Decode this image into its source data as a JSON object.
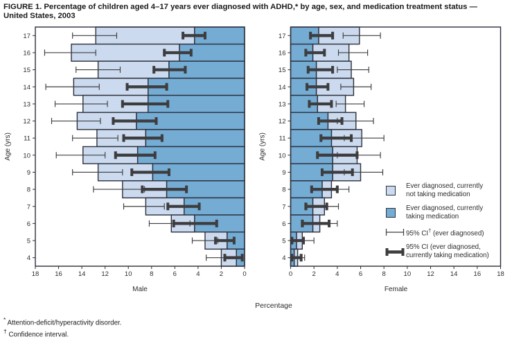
{
  "title_line1": "FIGURE 1. Percentage of children aged 4–17 years ever diagnosed with ADHD,* by age, sex, and medication treatment status —",
  "title_line2": "United States, 2003",
  "footnotes": [
    {
      "symbol": "*",
      "text": " Attention-deficit/hyperactivity disorder."
    },
    {
      "symbol": "†",
      "text": " Confidence interval."
    }
  ],
  "colors": {
    "bar_light": "#cbdaee",
    "bar_dark": "#74acd4",
    "bar_border": "#2b2f3b",
    "ci_color": "#3d3d3f",
    "text": "#2d2d2d"
  },
  "chart_data": {
    "type": "bar",
    "subtype": "population-pyramid-stacked-horizontal",
    "xlabel": "Percentage",
    "ylabel": "Age (yrs)",
    "xlim": [
      0,
      18
    ],
    "x_ticks": [
      0,
      2,
      4,
      6,
      8,
      10,
      12,
      14,
      16,
      18
    ],
    "ages": [
      17,
      16,
      15,
      14,
      13,
      12,
      11,
      10,
      9,
      8,
      7,
      6,
      5,
      4
    ],
    "series_meaning": {
      "ever": "Ever diagnosed with ADHD (total bar length, %)",
      "med": "Ever diagnosed, currently taking medication (dark segment, %)",
      "not_taking": "ever minus med (light segment, %)",
      "ever_ci": "95% CI for ever diagnosed (thin error bar)",
      "med_ci": "95% CI for currently taking medication (thick error bar)"
    },
    "legend": [
      {
        "swatch": "light",
        "lines": [
          "Ever diagnosed, currently",
          "not taking medication"
        ]
      },
      {
        "swatch": "dark",
        "lines": [
          "Ever diagnosed, currently",
          "taking medication"
        ]
      },
      {
        "swatch": "thin-ci",
        "pre": "95% CI",
        "sup": "†",
        "post": " (ever diagnosed)"
      },
      {
        "swatch": "thick-ci",
        "lines": [
          "95% CI (ever diagnosed,",
          "currently taking medication)"
        ]
      }
    ],
    "male": {
      "label": "Male",
      "rows": [
        {
          "age": 17,
          "ever": 12.8,
          "ever_ci": [
            11.0,
            14.8
          ],
          "med": 4.3,
          "med_ci": [
            3.4,
            5.3
          ]
        },
        {
          "age": 16,
          "ever": 14.9,
          "ever_ci": [
            12.8,
            17.2
          ],
          "med": 5.6,
          "med_ci": [
            4.6,
            6.9
          ]
        },
        {
          "age": 15,
          "ever": 12.6,
          "ever_ci": [
            10.7,
            14.5
          ],
          "med": 6.5,
          "med_ci": [
            5.1,
            7.8
          ]
        },
        {
          "age": 14,
          "ever": 14.7,
          "ever_ci": [
            12.5,
            17.1
          ],
          "med": 8.3,
          "med_ci": [
            6.7,
            10.1
          ]
        },
        {
          "age": 13,
          "ever": 13.9,
          "ever_ci": [
            11.8,
            16.3
          ],
          "med": 8.3,
          "med_ci": [
            6.6,
            10.5
          ]
        },
        {
          "age": 12,
          "ever": 14.4,
          "ever_ci": [
            12.4,
            16.6
          ],
          "med": 9.3,
          "med_ci": [
            7.6,
            11.3
          ]
        },
        {
          "age": 11,
          "ever": 12.7,
          "ever_ci": [
            10.9,
            14.8
          ],
          "med": 8.5,
          "med_ci": [
            7.1,
            10.4
          ]
        },
        {
          "age": 10,
          "ever": 13.9,
          "ever_ci": [
            12.0,
            16.2
          ],
          "med": 9.2,
          "med_ci": [
            7.7,
            11.1
          ]
        },
        {
          "age": 9,
          "ever": 12.6,
          "ever_ci": [
            10.5,
            14.8
          ],
          "med": 7.9,
          "med_ci": [
            6.5,
            9.7
          ]
        },
        {
          "age": 8,
          "ever": 10.5,
          "ever_ci": [
            8.6,
            13.0
          ],
          "med": 6.7,
          "med_ci": [
            5.0,
            8.8
          ]
        },
        {
          "age": 7,
          "ever": 8.5,
          "ever_ci": [
            6.9,
            10.4
          ],
          "med": 5.2,
          "med_ci": [
            3.9,
            6.6
          ]
        },
        {
          "age": 6,
          "ever": 6.3,
          "ever_ci": [
            4.7,
            8.2
          ],
          "med": 4.3,
          "med_ci": [
            2.4,
            6.1
          ]
        },
        {
          "age": 5,
          "ever": 3.4,
          "ever_ci": [
            2.3,
            4.5
          ],
          "med": 1.5,
          "med_ci": [
            0.9,
            2.5
          ]
        },
        {
          "age": 4,
          "ever": 2.0,
          "ever_ci": [
            0.7,
            3.3
          ],
          "med": 0.7,
          "med_ci": [
            0.2,
            1.7
          ]
        }
      ]
    },
    "female": {
      "label": "Female",
      "rows": [
        {
          "age": 17,
          "ever": 5.9,
          "ever_ci": [
            4.5,
            7.7
          ],
          "med": 2.4,
          "med_ci": [
            1.7,
            3.6
          ]
        },
        {
          "age": 16,
          "ever": 5.0,
          "ever_ci": [
            4.1,
            6.6
          ],
          "med": 1.9,
          "med_ci": [
            1.3,
            2.9
          ]
        },
        {
          "age": 15,
          "ever": 5.2,
          "ever_ci": [
            4.0,
            6.7
          ],
          "med": 2.2,
          "med_ci": [
            1.5,
            3.6
          ]
        },
        {
          "age": 14,
          "ever": 5.4,
          "ever_ci": [
            4.3,
            6.9
          ],
          "med": 2.2,
          "med_ci": [
            1.4,
            3.2
          ]
        },
        {
          "age": 13,
          "ever": 4.7,
          "ever_ci": [
            3.9,
            6.3
          ],
          "med": 2.3,
          "med_ci": [
            1.6,
            3.5
          ]
        },
        {
          "age": 12,
          "ever": 5.6,
          "ever_ci": [
            4.0,
            7.1
          ],
          "med": 3.2,
          "med_ci": [
            2.4,
            4.4
          ]
        },
        {
          "age": 11,
          "ever": 6.1,
          "ever_ci": [
            4.6,
            8.0
          ],
          "med": 3.5,
          "med_ci": [
            2.6,
            5.2
          ]
        },
        {
          "age": 10,
          "ever": 5.7,
          "ever_ci": [
            4.0,
            7.7
          ],
          "med": 3.6,
          "med_ci": [
            2.3,
            5.7
          ]
        },
        {
          "age": 9,
          "ever": 6.0,
          "ever_ci": [
            4.6,
            7.9
          ],
          "med": 3.6,
          "med_ci": [
            2.7,
            5.3
          ]
        },
        {
          "age": 8,
          "ever": 3.5,
          "ever_ci": [
            1.8,
            5.0
          ],
          "med": 2.7,
          "med_ci": [
            1.8,
            4.0
          ]
        },
        {
          "age": 7,
          "ever": 2.9,
          "ever_ci": [
            1.4,
            4.1
          ],
          "med": 1.9,
          "med_ci": [
            1.3,
            3.1
          ]
        },
        {
          "age": 6,
          "ever": 2.5,
          "ever_ci": [
            1.1,
            4.0
          ],
          "med": 1.9,
          "med_ci": [
            1.0,
            3.3
          ]
        },
        {
          "age": 5,
          "ever": 1.0,
          "ever_ci": [
            0.2,
            2.0
          ],
          "med": 0.5,
          "med_ci": [
            0.1,
            1.1
          ]
        },
        {
          "age": 4,
          "ever": 0.6,
          "ever_ci": [
            0.1,
            1.2
          ],
          "med": 0.3,
          "med_ci": [
            0.1,
            0.9
          ]
        }
      ]
    }
  }
}
